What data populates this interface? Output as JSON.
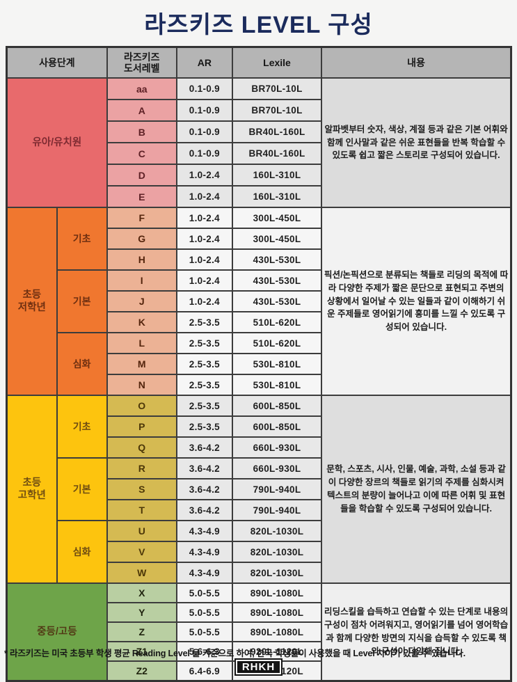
{
  "title": "라즈키즈 LEVEL 구성",
  "header": {
    "stage": "사용단계",
    "level": "라즈키즈\n도서레벨",
    "ar": "AR",
    "lexile": "Lexile",
    "content": "내용"
  },
  "sections": [
    {
      "stage": "유아/유치원",
      "rows": [
        {
          "level": "aa",
          "ar": "0.1-0.9",
          "lexile": "BR70L-10L"
        },
        {
          "level": "A",
          "ar": "0.1-0.9",
          "lexile": "BR70L-10L"
        },
        {
          "level": "B",
          "ar": "0.1-0.9",
          "lexile": "BR40L-160L"
        },
        {
          "level": "C",
          "ar": "0.1-0.9",
          "lexile": "BR40L-160L"
        },
        {
          "level": "D",
          "ar": "1.0-2.4",
          "lexile": "160L-310L"
        },
        {
          "level": "E",
          "ar": "1.0-2.4",
          "lexile": "160L-310L"
        }
      ],
      "content": "알파벳부터 숫자, 색상, 계절 등과 같은 기본 어휘와 함께 인사말과 같은 쉬운 표현들을 반복 학습할 수 있도록 쉽고 짧은 스토리로 구성되어 있습니다."
    },
    {
      "stage": "초등\n저학년",
      "substages": [
        {
          "label": "기초"
        },
        {
          "label": "기본"
        },
        {
          "label": "심화"
        }
      ],
      "rows": [
        {
          "level": "F",
          "ar": "1.0-2.4",
          "lexile": "300L-450L"
        },
        {
          "level": "G",
          "ar": "1.0-2.4",
          "lexile": "300L-450L"
        },
        {
          "level": "H",
          "ar": "1.0-2.4",
          "lexile": "430L-530L"
        },
        {
          "level": "I",
          "ar": "1.0-2.4",
          "lexile": "430L-530L"
        },
        {
          "level": "J",
          "ar": "1.0-2.4",
          "lexile": "430L-530L"
        },
        {
          "level": "K",
          "ar": "2.5-3.5",
          "lexile": "510L-620L"
        },
        {
          "level": "L",
          "ar": "2.5-3.5",
          "lexile": "510L-620L"
        },
        {
          "level": "M",
          "ar": "2.5-3.5",
          "lexile": "530L-810L"
        },
        {
          "level": "N",
          "ar": "2.5-3.5",
          "lexile": "530L-810L"
        }
      ],
      "content": "픽션/논픽션으로 분류되는 책들로 리딩의 목적에 따라 다양한 주제가 짧은 문단으로 표현되고 주변의 상황에서 일어날 수 있는 일들과 같이 이해하기 쉬운 주제들로 영어읽기에 흥미를 느낄 수 있도록 구성되어 있습니다."
    },
    {
      "stage": "초등\n고학년",
      "substages": [
        {
          "label": "기초"
        },
        {
          "label": "기본"
        },
        {
          "label": "심화"
        }
      ],
      "rows": [
        {
          "level": "O",
          "ar": "2.5-3.5",
          "lexile": "600L-850L"
        },
        {
          "level": "P",
          "ar": "2.5-3.5",
          "lexile": "600L-850L"
        },
        {
          "level": "Q",
          "ar": "3.6-4.2",
          "lexile": "660L-930L"
        },
        {
          "level": "R",
          "ar": "3.6-4.2",
          "lexile": "660L-930L"
        },
        {
          "level": "S",
          "ar": "3.6-4.2",
          "lexile": "790L-940L"
        },
        {
          "level": "T",
          "ar": "3.6-4.2",
          "lexile": "790L-940L"
        },
        {
          "level": "U",
          "ar": "4.3-4.9",
          "lexile": "820L-1030L"
        },
        {
          "level": "V",
          "ar": "4.3-4.9",
          "lexile": "820L-1030L"
        },
        {
          "level": "W",
          "ar": "4.3-4.9",
          "lexile": "820L-1030L"
        }
      ],
      "content": "문학, 스포츠, 시사, 인물, 예술, 과학, 소설 등과 같이 다양한 장르의 책들로 읽기의 주제를 심화시켜 텍스트의 분량이 늘어나고 이에 따른 어휘 및 표현들을 학습할 수 있도록 구성되어 있습니다."
    },
    {
      "stage": "중등/고등",
      "rows": [
        {
          "level": "X",
          "ar": "5.0-5.5",
          "lexile": "890L-1080L"
        },
        {
          "level": "Y",
          "ar": "5.0-5.5",
          "lexile": "890L-1080L"
        },
        {
          "level": "Z",
          "ar": "5.0-5.5",
          "lexile": "890L-1080L"
        },
        {
          "level": "Z1",
          "ar": "5.6-6.3",
          "lexile": "920L-1120L"
        },
        {
          "level": "Z2",
          "ar": "6.4-6.9",
          "lexile": "920L-1120L"
        }
      ],
      "content": "리딩스킬을 습득하고 연습할 수 있는 단계로 내용의 구성이 점차 어려워지고, 영어읽기를 넘어 영어학습과 함께 다양한 방면의 지식을 습득할 수 있도록 책의 구성이 다양해 집니다."
    }
  ],
  "footnote": "* 라즈키즈는 미국 초등부 학생 평균 Reading Level 을 기준으로 하여, 한국 학생들이 사용했을 때 Level 차이가 있을 수 있습니다.",
  "logo": "RHKH",
  "colors": {
    "title": "#1b2b5c",
    "header_bg": "#b5b5b5",
    "border": "#3c3c3c",
    "section1_stage": "#e86a6c",
    "section1_level": "#eba2a3",
    "section2_stage": "#f0772f",
    "section2_level": "#ecb295",
    "section3_stage": "#fdc40e",
    "section3_level": "#d5ba52",
    "section4_stage": "#6ea449",
    "section4_level": "#b9cfa2"
  }
}
